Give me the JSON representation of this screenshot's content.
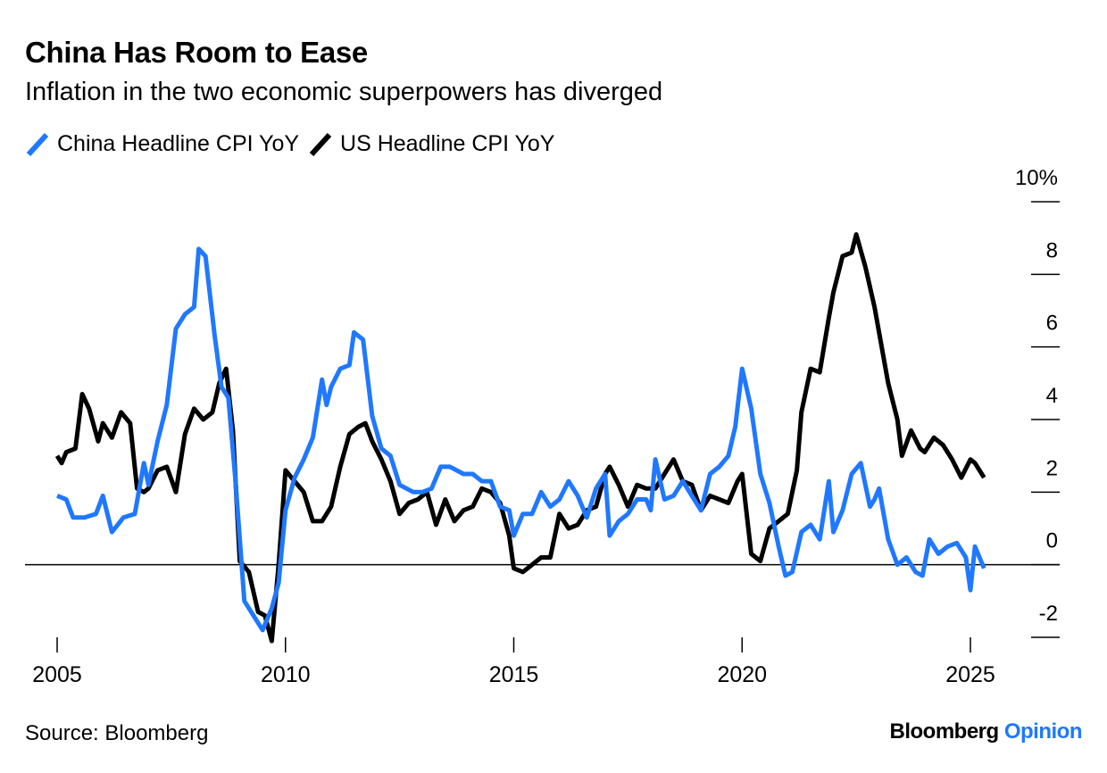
{
  "header": {
    "title": "China Has Room to Ease",
    "subtitle": "Inflation in the two economic superpowers has diverged"
  },
  "footer": {
    "source": "Source: Bloomberg",
    "brand_primary": "Bloomberg",
    "brand_secondary": "Opinion"
  },
  "colors": {
    "china": "#1f78ff",
    "us": "#000000",
    "brand_accent": "#1f78ff"
  },
  "chart_data": {
    "type": "line",
    "title": "China Has Room to Ease",
    "subtitle": "Inflation in the two economic superpowers has diverged",
    "xlabel": "",
    "ylabel": "",
    "xlim": [
      2005,
      2025.8
    ],
    "ylim": [
      -2,
      10
    ],
    "x_ticks": [
      2005,
      2010,
      2015,
      2020,
      2025
    ],
    "x_tick_labels": [
      "2005",
      "2010",
      "2015",
      "2020",
      "2025"
    ],
    "y_ticks": [
      -2,
      0,
      2,
      4,
      6,
      8,
      10
    ],
    "y_tick_labels": [
      "-2",
      "0",
      "2",
      "4",
      "6",
      "8",
      "10%"
    ],
    "y_axis_position": "right",
    "zero_line": true,
    "grid": false,
    "legend": "top-left",
    "series": [
      {
        "name": "China Headline CPI YoY",
        "color": "#1f78ff",
        "x": [
          2005.0,
          2005.2,
          2005.35,
          2005.6,
          2005.85,
          2006.0,
          2006.2,
          2006.45,
          2006.7,
          2006.9,
          2007.0,
          2007.2,
          2007.4,
          2007.6,
          2007.8,
          2008.0,
          2008.1,
          2008.25,
          2008.45,
          2008.6,
          2008.75,
          2008.9,
          2009.1,
          2009.3,
          2009.5,
          2009.7,
          2009.85,
          2010.0,
          2010.2,
          2010.4,
          2010.6,
          2010.8,
          2010.9,
          2011.0,
          2011.2,
          2011.4,
          2011.5,
          2011.7,
          2011.9,
          2012.1,
          2012.3,
          2012.5,
          2012.8,
          2013.0,
          2013.2,
          2013.4,
          2013.6,
          2013.9,
          2014.1,
          2014.3,
          2014.5,
          2014.7,
          2014.9,
          2015.0,
          2015.2,
          2015.4,
          2015.6,
          2015.8,
          2016.0,
          2016.2,
          2016.4,
          2016.6,
          2016.8,
          2017.0,
          2017.1,
          2017.3,
          2017.5,
          2017.7,
          2017.9,
          2018.0,
          2018.1,
          2018.3,
          2018.5,
          2018.7,
          2018.9,
          2019.1,
          2019.3,
          2019.5,
          2019.7,
          2019.85,
          2020.0,
          2020.2,
          2020.4,
          2020.6,
          2020.8,
          2020.95,
          2021.1,
          2021.3,
          2021.5,
          2021.7,
          2021.9,
          2022.0,
          2022.2,
          2022.4,
          2022.6,
          2022.8,
          2022.9,
          2023.0,
          2023.2,
          2023.4,
          2023.6,
          2023.8,
          2023.95,
          2024.1,
          2024.3,
          2024.5,
          2024.7,
          2024.9,
          2025.0,
          2025.1,
          2025.3
        ],
        "y": [
          1.9,
          1.8,
          1.3,
          1.3,
          1.4,
          1.9,
          0.9,
          1.3,
          1.4,
          2.8,
          2.2,
          3.4,
          4.4,
          6.5,
          6.9,
          7.1,
          8.7,
          8.5,
          6.3,
          4.9,
          4.6,
          2.4,
          -1.0,
          -1.4,
          -1.8,
          -1.2,
          -0.5,
          1.5,
          2.4,
          2.9,
          3.5,
          5.1,
          4.4,
          4.9,
          5.4,
          5.5,
          6.4,
          6.2,
          4.1,
          3.2,
          3.0,
          2.2,
          2.0,
          2.0,
          2.1,
          2.7,
          2.7,
          2.5,
          2.5,
          2.3,
          2.3,
          1.6,
          1.5,
          0.8,
          1.4,
          1.4,
          2.0,
          1.6,
          1.8,
          2.3,
          1.9,
          1.3,
          2.1,
          2.5,
          0.8,
          1.2,
          1.4,
          1.8,
          1.8,
          1.5,
          2.9,
          1.8,
          1.9,
          2.3,
          1.9,
          1.5,
          2.5,
          2.7,
          3.0,
          3.8,
          5.4,
          4.3,
          2.5,
          1.7,
          0.5,
          -0.3,
          -0.2,
          0.9,
          1.1,
          0.7,
          2.3,
          0.9,
          1.5,
          2.5,
          2.8,
          1.6,
          1.8,
          2.1,
          0.7,
          0.0,
          0.2,
          -0.2,
          -0.3,
          0.7,
          0.3,
          0.5,
          0.6,
          0.2,
          -0.7,
          0.5,
          -0.1
        ]
      },
      {
        "name": "US Headline CPI YoY",
        "color": "#000000",
        "x": [
          2005.0,
          2005.1,
          2005.2,
          2005.4,
          2005.55,
          2005.7,
          2005.9,
          2006.0,
          2006.2,
          2006.4,
          2006.6,
          2006.75,
          2006.9,
          2007.0,
          2007.2,
          2007.4,
          2007.6,
          2007.8,
          2008.0,
          2008.2,
          2008.4,
          2008.55,
          2008.7,
          2008.85,
          2009.0,
          2009.2,
          2009.4,
          2009.55,
          2009.7,
          2009.85,
          2010.0,
          2010.2,
          2010.4,
          2010.6,
          2010.8,
          2011.0,
          2011.2,
          2011.4,
          2011.6,
          2011.75,
          2011.9,
          2012.1,
          2012.3,
          2012.5,
          2012.7,
          2012.9,
          2013.1,
          2013.3,
          2013.5,
          2013.7,
          2013.9,
          2014.1,
          2014.3,
          2014.5,
          2014.7,
          2014.9,
          2015.0,
          2015.2,
          2015.4,
          2015.6,
          2015.8,
          2016.0,
          2016.2,
          2016.4,
          2016.6,
          2016.8,
          2017.0,
          2017.1,
          2017.3,
          2017.5,
          2017.7,
          2017.9,
          2018.1,
          2018.3,
          2018.5,
          2018.7,
          2018.9,
          2019.1,
          2019.3,
          2019.5,
          2019.7,
          2019.9,
          2020.0,
          2020.2,
          2020.4,
          2020.6,
          2020.8,
          2021.0,
          2021.2,
          2021.3,
          2021.5,
          2021.7,
          2021.9,
          2022.0,
          2022.2,
          2022.4,
          2022.5,
          2022.7,
          2022.9,
          2023.0,
          2023.2,
          2023.4,
          2023.5,
          2023.7,
          2023.9,
          2024.0,
          2024.2,
          2024.4,
          2024.6,
          2024.8,
          2025.0,
          2025.1,
          2025.3
        ],
        "y": [
          3.0,
          2.8,
          3.1,
          3.2,
          4.7,
          4.3,
          3.4,
          3.9,
          3.5,
          4.2,
          3.9,
          2.1,
          2.0,
          2.1,
          2.6,
          2.7,
          2.0,
          3.6,
          4.3,
          4.0,
          4.2,
          5.0,
          5.4,
          3.7,
          0.1,
          -0.2,
          -1.3,
          -1.4,
          -2.1,
          0.0,
          2.6,
          2.3,
          2.0,
          1.2,
          1.2,
          1.6,
          2.7,
          3.6,
          3.8,
          3.9,
          3.4,
          2.9,
          2.3,
          1.4,
          1.7,
          1.8,
          2.0,
          1.1,
          1.8,
          1.2,
          1.5,
          1.6,
          2.1,
          2.0,
          1.7,
          0.8,
          -0.1,
          -0.2,
          0.0,
          0.2,
          0.2,
          1.4,
          1.0,
          1.1,
          1.5,
          1.6,
          2.5,
          2.7,
          2.2,
          1.6,
          2.2,
          2.1,
          2.1,
          2.5,
          2.9,
          2.3,
          2.2,
          1.5,
          1.9,
          1.8,
          1.7,
          2.3,
          2.5,
          0.3,
          0.1,
          1.0,
          1.2,
          1.4,
          2.6,
          4.2,
          5.4,
          5.3,
          6.8,
          7.5,
          8.5,
          8.6,
          9.1,
          8.2,
          7.1,
          6.4,
          5.0,
          4.0,
          3.0,
          3.7,
          3.2,
          3.1,
          3.5,
          3.3,
          2.9,
          2.4,
          2.9,
          2.8,
          2.4
        ]
      }
    ]
  }
}
